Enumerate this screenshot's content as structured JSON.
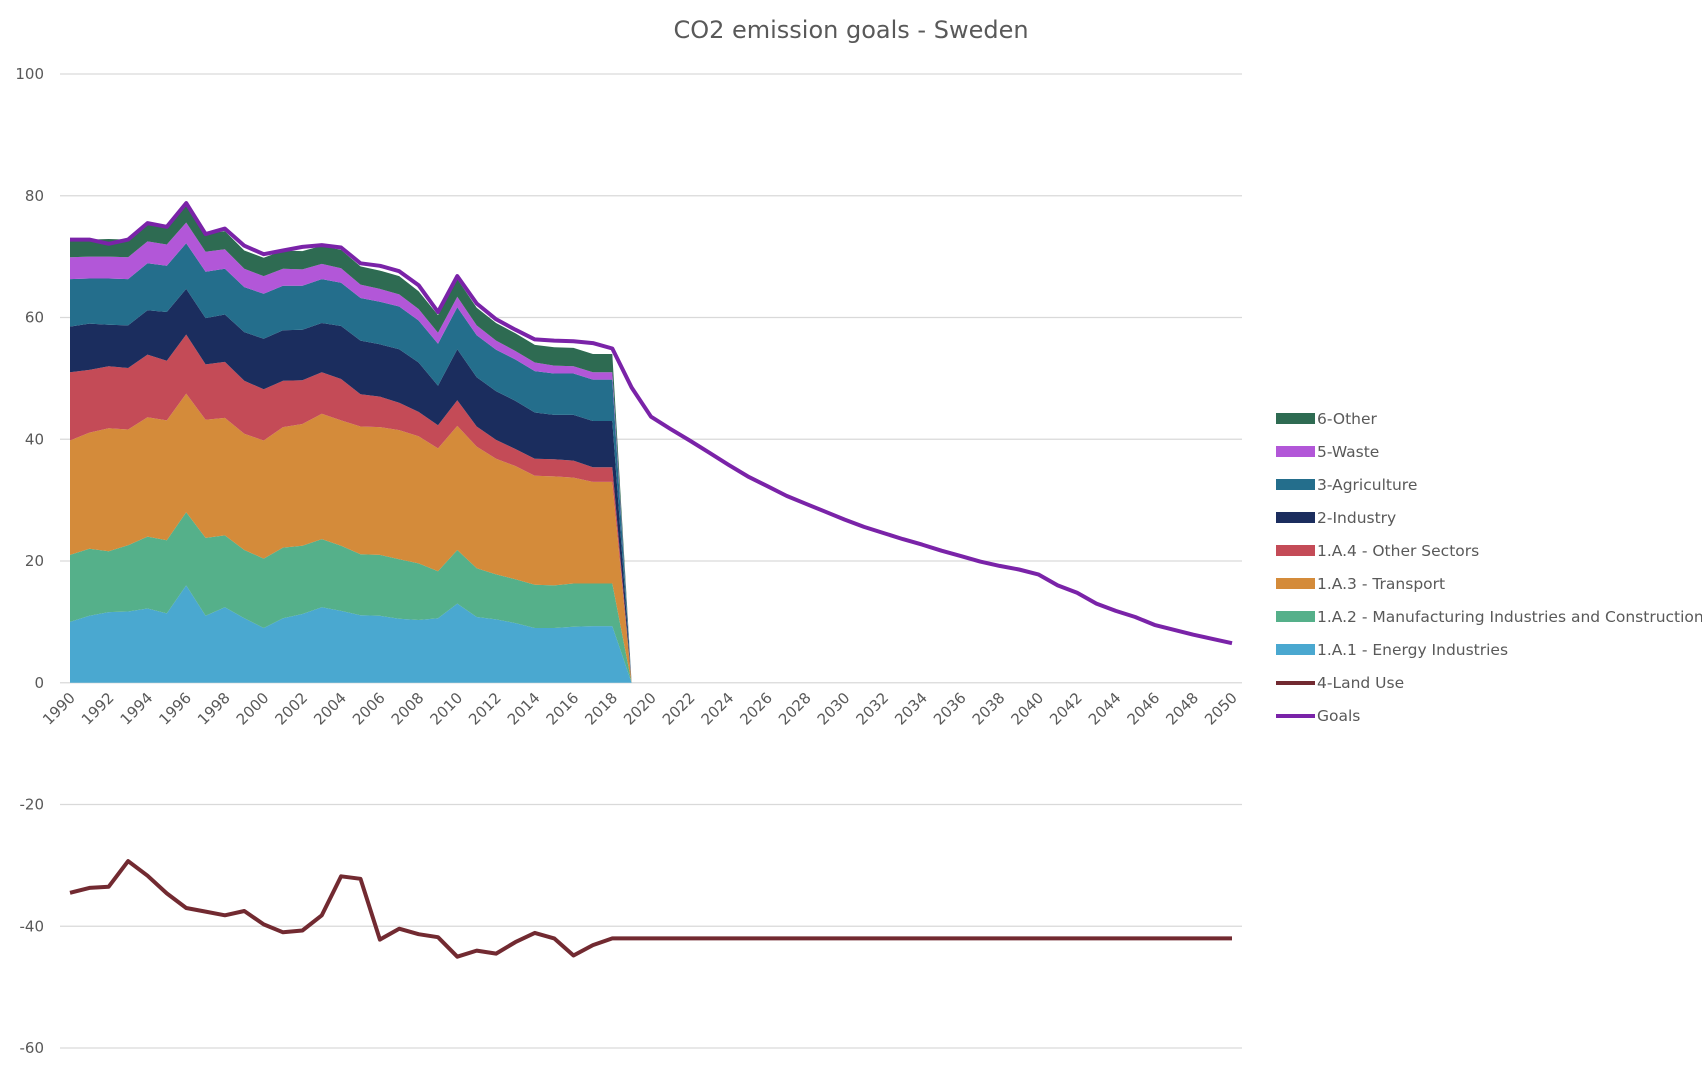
{
  "chart_data": {
    "type": "area",
    "title": "CO2 emission goals - Sweden",
    "xlabel": "",
    "ylabel": "",
    "ylim": [
      -60,
      100
    ],
    "yticks": [
      100,
      80,
      60,
      40,
      20,
      0,
      -20,
      -40,
      -60
    ],
    "grid": true,
    "legend_position": "right",
    "years": [
      1990,
      1991,
      1992,
      1993,
      1994,
      1995,
      1996,
      1997,
      1998,
      1999,
      2000,
      2001,
      2002,
      2003,
      2004,
      2005,
      2006,
      2007,
      2008,
      2009,
      2010,
      2011,
      2012,
      2013,
      2014,
      2015,
      2016,
      2017,
      2018,
      2019,
      2020,
      2021,
      2022,
      2023,
      2024,
      2025,
      2026,
      2027,
      2028,
      2029,
      2030,
      2031,
      2032,
      2033,
      2034,
      2035,
      2036,
      2037,
      2038,
      2039,
      2040,
      2041,
      2042,
      2043,
      2044,
      2045,
      2046,
      2047,
      2048,
      2049,
      2050
    ],
    "tick_labels": [
      "1990",
      "1992",
      "1994",
      "1996",
      "1998",
      "2000",
      "2002",
      "2004",
      "2006",
      "2008",
      "2010",
      "2012",
      "2014",
      "2016",
      "2018",
      "2020",
      "2022",
      "2024",
      "2026",
      "2028",
      "2030",
      "2032",
      "2034",
      "2036",
      "2038",
      "2040",
      "2042",
      "2044",
      "2046",
      "2048",
      "2050"
    ],
    "stacked_series": [
      {
        "name": "1.A.1 - Energy Industries",
        "color": "#4aa8d0",
        "values": [
          10.0,
          11.0,
          11.6,
          11.7,
          12.2,
          11.4,
          16.0,
          11.0,
          12.4,
          10.6,
          9.0,
          10.6,
          11.3,
          12.4,
          11.8,
          11.1,
          11.0,
          10.5,
          10.3,
          10.6,
          13.0,
          10.8,
          10.4,
          9.8,
          9.0,
          9.0,
          9.2,
          9.3,
          9.3,
          0
        ]
      },
      {
        "name": "1.A.2 - Manufacturing Industries and Construction",
        "color": "#55b08a",
        "values": [
          11.0,
          11.0,
          10.0,
          10.9,
          11.8,
          12.0,
          12.0,
          12.8,
          11.8,
          11.2,
          11.4,
          11.6,
          11.2,
          11.2,
          10.7,
          10.0,
          10.0,
          9.8,
          9.3,
          7.7,
          8.8,
          8.0,
          7.4,
          7.2,
          7.1,
          7.0,
          7.1,
          7.0,
          7.0,
          0
        ]
      },
      {
        "name": "1.A.3 - Transport",
        "color": "#d48b3a",
        "values": [
          18.8,
          19.1,
          20.2,
          19.0,
          19.6,
          19.7,
          19.5,
          19.4,
          19.3,
          19.1,
          19.4,
          19.8,
          20.0,
          20.6,
          20.6,
          21.0,
          21.0,
          21.2,
          20.9,
          20.2,
          20.4,
          20.0,
          19.0,
          18.6,
          17.9,
          17.9,
          17.4,
          16.7,
          16.7,
          0
        ]
      },
      {
        "name": "1.A.4 - Other Sectors",
        "color": "#c44b57",
        "values": [
          11.2,
          10.3,
          10.2,
          10.1,
          10.3,
          9.8,
          9.7,
          9.1,
          9.2,
          8.7,
          8.4,
          7.6,
          7.2,
          6.8,
          6.8,
          5.3,
          5.0,
          4.5,
          4.0,
          3.8,
          4.2,
          3.3,
          3.1,
          2.8,
          2.8,
          2.8,
          2.8,
          2.4,
          2.4,
          0
        ]
      },
      {
        "name": "2-Industry",
        "color": "#1b2d5e",
        "values": [
          7.5,
          7.6,
          6.8,
          7.0,
          7.3,
          8.0,
          7.5,
          7.6,
          7.8,
          8.0,
          8.3,
          8.3,
          8.3,
          8.1,
          8.7,
          8.8,
          8.6,
          8.8,
          8.1,
          6.5,
          8.4,
          8.1,
          8.0,
          7.9,
          7.6,
          7.3,
          7.5,
          7.6,
          7.6,
          0
        ]
      },
      {
        "name": "3-Agriculture",
        "color": "#246e8c",
        "values": [
          7.8,
          7.4,
          7.6,
          7.6,
          7.7,
          7.6,
          7.5,
          7.6,
          7.5,
          7.4,
          7.4,
          7.3,
          7.2,
          7.2,
          7.1,
          7.0,
          7.0,
          7.0,
          6.9,
          6.9,
          6.9,
          6.9,
          6.8,
          6.8,
          6.8,
          6.8,
          6.8,
          6.8,
          6.8,
          0
        ]
      },
      {
        "name": "5-Waste",
        "color": "#b257d8",
        "values": [
          3.6,
          3.6,
          3.6,
          3.6,
          3.6,
          3.5,
          3.4,
          3.3,
          3.2,
          3.0,
          2.9,
          2.8,
          2.7,
          2.5,
          2.4,
          2.2,
          2.1,
          2.0,
          1.9,
          1.8,
          1.7,
          1.6,
          1.5,
          1.4,
          1.4,
          1.3,
          1.2,
          1.2,
          1.2,
          0
        ]
      },
      {
        "name": "6-Other",
        "color": "#2e6b52",
        "values": [
          2.8,
          2.8,
          2.9,
          2.9,
          2.9,
          2.9,
          2.9,
          2.9,
          3.0,
          3.0,
          3.0,
          3.0,
          3.0,
          3.0,
          3.0,
          3.0,
          3.0,
          3.0,
          2.9,
          2.9,
          2.9,
          2.9,
          2.9,
          2.9,
          2.9,
          3.0,
          3.0,
          3.0,
          3.0,
          0
        ]
      }
    ],
    "line_series": [
      {
        "name": "4-Land Use",
        "color": "#722a31",
        "values": [
          -34.5,
          -33.7,
          -33.5,
          -29.3,
          -31.7,
          -34.6,
          -37.0,
          -37.6,
          -38.2,
          -37.5,
          -39.7,
          -41.0,
          -40.7,
          -38.2,
          -31.8,
          -32.2,
          -42.2,
          -40.4,
          -41.3,
          -41.8,
          -45.0,
          -44.0,
          -44.5,
          -42.6,
          -41.1,
          -42.0,
          -44.8,
          -43.1,
          -42.0,
          -42,
          -42,
          -42,
          -42,
          -42,
          -42,
          -42,
          -42,
          -42,
          -42,
          -42,
          -42,
          -42,
          -42,
          -42,
          -42,
          -42,
          -42,
          -42,
          -42,
          -42,
          -42,
          -42,
          -42,
          -42,
          -42,
          -42,
          -42,
          -42,
          -42,
          -42,
          -42
        ]
      },
      {
        "name": "Goals",
        "color": "#7a23a8",
        "values": [
          72.8,
          72.8,
          72.1,
          72.8,
          75.5,
          74.9,
          78.8,
          73.7,
          74.6,
          71.8,
          70.4,
          71.0,
          71.6,
          71.9,
          71.5,
          68.9,
          68.5,
          67.6,
          65.3,
          60.9,
          66.8,
          62.3,
          59.7,
          58.0,
          56.4,
          56.2,
          56.1,
          55.8,
          54.9,
          48.5,
          43.7,
          41.7,
          39.8,
          37.8,
          35.8,
          33.9,
          32.3,
          30.7,
          29.4,
          28.1,
          26.8,
          25.6,
          24.6,
          23.6,
          22.7,
          21.7,
          20.8,
          19.9,
          19.2,
          18.6,
          17.8,
          16.0,
          14.8,
          13.0,
          11.8,
          10.8,
          9.5,
          8.7,
          7.9,
          7.2,
          6.5
        ]
      }
    ]
  },
  "legend": {
    "items": [
      {
        "label": "6-Other",
        "color": "#2e6b52",
        "kind": "swatch"
      },
      {
        "label": "5-Waste",
        "color": "#b257d8",
        "kind": "swatch"
      },
      {
        "label": "3-Agriculture",
        "color": "#246e8c",
        "kind": "swatch"
      },
      {
        "label": "2-Industry",
        "color": "#1b2d5e",
        "kind": "swatch"
      },
      {
        "label": "1.A.4 - Other Sectors",
        "color": "#c44b57",
        "kind": "swatch"
      },
      {
        "label": "1.A.3 - Transport",
        "color": "#d48b3a",
        "kind": "swatch"
      },
      {
        "label": "1.A.2 - Manufacturing Industries and Construction",
        "color": "#55b08a",
        "kind": "swatch"
      },
      {
        "label": "1.A.1 - Energy Industries",
        "color": "#4aa8d0",
        "kind": "swatch"
      },
      {
        "label": "4-Land Use",
        "color": "#722a31",
        "kind": "line"
      },
      {
        "label": "Goals",
        "color": "#7a23a8",
        "kind": "line"
      }
    ]
  }
}
